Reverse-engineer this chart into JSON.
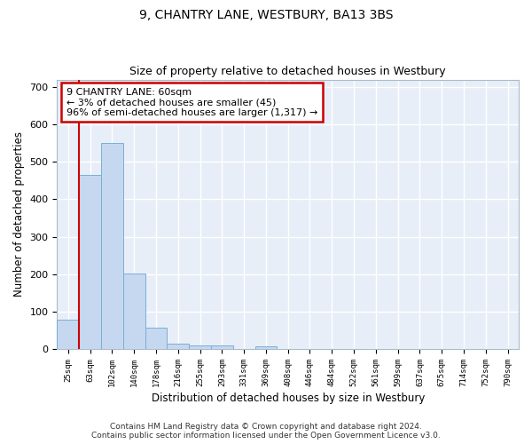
{
  "title": "9, CHANTRY LANE, WESTBURY, BA13 3BS",
  "subtitle": "Size of property relative to detached houses in Westbury",
  "xlabel": "Distribution of detached houses by size in Westbury",
  "ylabel": "Number of detached properties",
  "bar_values": [
    78,
    465,
    550,
    203,
    57,
    15,
    10,
    10,
    0,
    8,
    0,
    0,
    0,
    0,
    0,
    0,
    0,
    0,
    0,
    0
  ],
  "bar_labels": [
    "25sqm",
    "63sqm",
    "102sqm",
    "140sqm",
    "178sqm",
    "216sqm",
    "255sqm",
    "293sqm",
    "331sqm",
    "369sqm",
    "408sqm",
    "446sqm",
    "484sqm",
    "522sqm",
    "561sqm",
    "599sqm",
    "637sqm",
    "675sqm",
    "714sqm",
    "752sqm",
    "790sqm"
  ],
  "bar_color": "#c5d8f0",
  "bar_edge_color": "#7bafd4",
  "annotation_text": "9 CHANTRY LANE: 60sqm\n← 3% of detached houses are smaller (45)\n96% of semi-detached houses are larger (1,317) →",
  "annotation_box_facecolor": "#ffffff",
  "annotation_box_edgecolor": "#cc0000",
  "redline_x": 0.5,
  "ylim": [
    0,
    720
  ],
  "yticks": [
    0,
    100,
    200,
    300,
    400,
    500,
    600,
    700
  ],
  "plot_bg_color": "#e8eef8",
  "grid_color": "#ffffff",
  "footer": "Contains HM Land Registry data © Crown copyright and database right 2024.\nContains public sector information licensed under the Open Government Licence v3.0."
}
